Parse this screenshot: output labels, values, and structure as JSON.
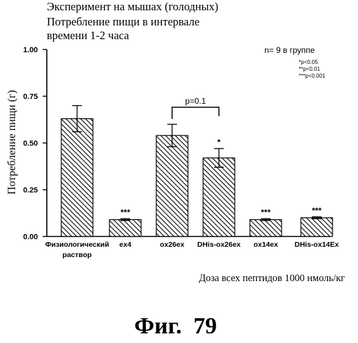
{
  "chart_data": {
    "type": "bar",
    "title_lines": [
      "Эксперимент на мышах (голодных)",
      "Потребление пищи в интервале",
      "времени 1-2 часа"
    ],
    "ylabel": "Потребление пищи (г)",
    "xlabel": "Доза всех пептидов 1000 нмоль/кг",
    "ylim": [
      0,
      1.0
    ],
    "yticks": [
      "0.00",
      "0.25",
      "0.50",
      "0.75",
      "1.00"
    ],
    "ytick_values": [
      0,
      0.25,
      0.5,
      0.75,
      1.0
    ],
    "categories": [
      [
        "Физиологический",
        "раствор"
      ],
      [
        "ex4"
      ],
      [
        "ox26ex"
      ],
      [
        "DHis-ox26ex"
      ],
      [
        "ox14ex"
      ],
      [
        "DHis-ox14Ex"
      ]
    ],
    "values": [
      0.63,
      0.09,
      0.54,
      0.42,
      0.09,
      0.1
    ],
    "errors": [
      0.07,
      0.005,
      0.06,
      0.05,
      0.005,
      0.005
    ],
    "significance": [
      "",
      "***",
      "",
      "*",
      "***",
      "***"
    ],
    "bracket": {
      "from": 2,
      "to": 3,
      "label": "p=0.1"
    },
    "n_note": "n= 9 в группе",
    "legend_notes": [
      "*p<0.05",
      "**p<0.01",
      "***p<0.001"
    ],
    "grid": false,
    "bar_fill": "diagonal hatching",
    "colors": {
      "ink": "#000000",
      "background": "#ffffff"
    }
  },
  "caption": "Фиг.  79"
}
